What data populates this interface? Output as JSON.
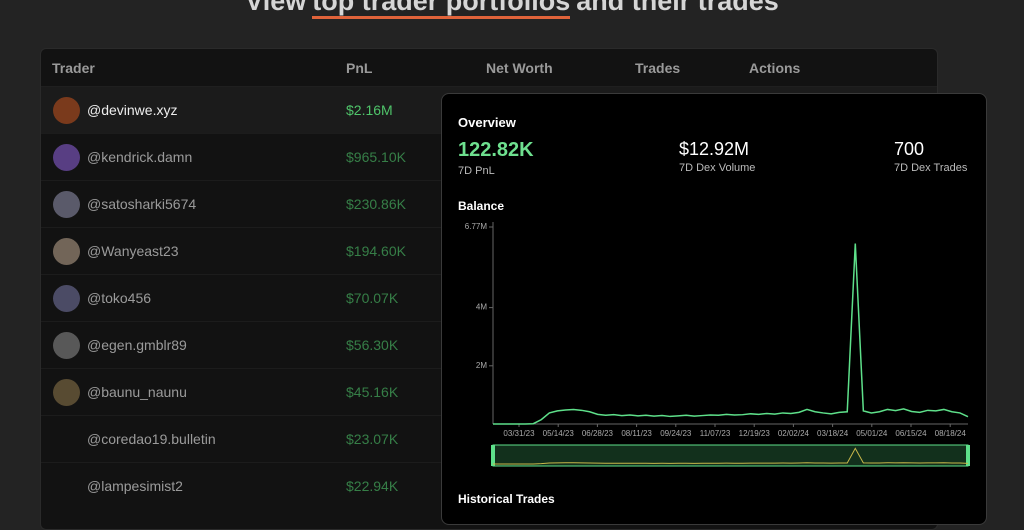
{
  "header": {
    "title_start": "View",
    "title_highlight": "top trader portfolios",
    "title_end": "and their trades"
  },
  "table": {
    "columns": [
      "Trader",
      "PnL",
      "Net Worth",
      "Trades",
      "Actions"
    ],
    "rows": [
      {
        "trader": "@devinwe.xyz",
        "pnl": "$2.16M"
      },
      {
        "trader": "@kendrick.damn",
        "pnl": "$965.10K"
      },
      {
        "trader": "@satosharki5674",
        "pnl": "$230.86K"
      },
      {
        "trader": "@Wanyeast23",
        "pnl": "$194.60K"
      },
      {
        "trader": "@toko456",
        "pnl": "$70.07K"
      },
      {
        "trader": "@egen.gmblr89",
        "pnl": "$56.30K"
      },
      {
        "trader": "@baunu_naunu",
        "pnl": "$45.16K"
      },
      {
        "trader": "@coredao19.bulletin",
        "pnl": "$23.07K"
      },
      {
        "trader": "@lampesimist2",
        "pnl": "$22.94K"
      }
    ]
  },
  "card": {
    "overview_title": "Overview",
    "stats": [
      {
        "value": "122.82K",
        "label": "7D PnL"
      },
      {
        "value": "$12.92M",
        "label": "7D Dex Volume"
      },
      {
        "value": "700",
        "label": "7D Dex Trades"
      }
    ],
    "historical_title": "Historical Trades",
    "balance": {
      "type": "line",
      "title": "Balance",
      "ylim": [
        0,
        6770000
      ],
      "yticks": [
        {
          "value": 2000000,
          "label": "2M"
        },
        {
          "value": 4000000,
          "label": "4M"
        },
        {
          "value": 6770000,
          "label": "6.77M"
        }
      ],
      "xticks": [
        "03/31/23",
        "05/14/23",
        "06/28/23",
        "08/11/23",
        "09/24/23",
        "11/07/23",
        "12/19/23",
        "02/02/24",
        "03/18/24",
        "05/01/24",
        "06/15/24",
        "08/18/24"
      ],
      "color": "#5ee08a",
      "values": [
        0,
        0,
        0,
        0,
        0,
        10000,
        150000,
        380000,
        450000,
        480000,
        500000,
        470000,
        420000,
        330000,
        300000,
        320000,
        290000,
        310000,
        280000,
        300000,
        270000,
        290000,
        260000,
        280000,
        300000,
        270000,
        290000,
        310000,
        300000,
        330000,
        310000,
        320000,
        350000,
        330000,
        360000,
        340000,
        380000,
        360000,
        400000,
        500000,
        420000,
        380000,
        350000,
        400000,
        420000,
        6200000,
        450000,
        380000,
        420000,
        500000,
        460000,
        520000,
        430000,
        400000,
        470000,
        450000,
        500000,
        420000,
        380000,
        250000
      ]
    }
  }
}
